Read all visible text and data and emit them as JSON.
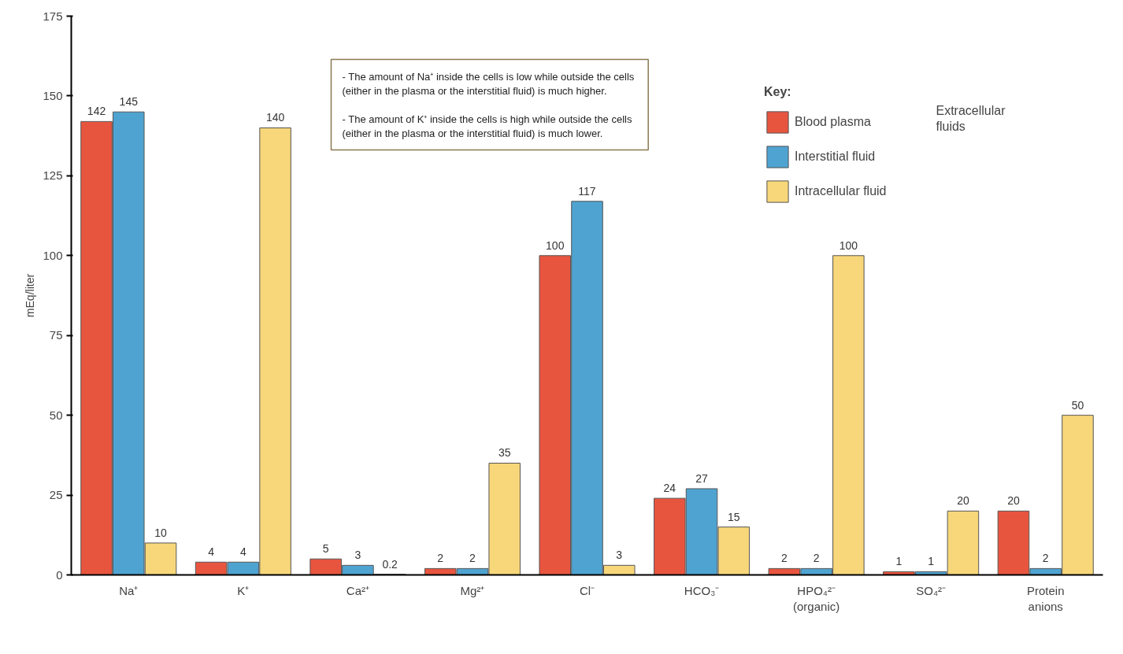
{
  "chart_data": {
    "type": "bar",
    "ylabel": "mEq/liter",
    "legend_title": "Key:",
    "categories": [
      "Na⁺",
      "K⁺",
      "Ca²⁺",
      "Mg²⁺",
      "Cl⁻",
      "HCO₃⁻",
      "HPO₄²⁻\n(organic)",
      "SO₄²⁻",
      "Protein\nanions"
    ],
    "series": [
      {
        "name": "Blood plasma",
        "color": "#e8553f",
        "values": [
          142,
          4,
          5,
          2,
          100,
          24,
          2,
          1,
          20
        ]
      },
      {
        "name": "Interstitial fluid",
        "color": "#4fa3d1",
        "values": [
          145,
          4,
          3,
          2,
          117,
          27,
          2,
          1,
          2
        ]
      },
      {
        "name": "Intracellular fluid",
        "color": "#f7d77a",
        "values": [
          10,
          140,
          0.2,
          35,
          3,
          15,
          100,
          20,
          50
        ]
      }
    ],
    "ylim": [
      0,
      175
    ],
    "yticks": [
      0,
      25,
      50,
      75,
      100,
      125,
      150,
      175
    ],
    "data_labels": true,
    "grid": false,
    "legend": "top right",
    "annotations": [
      "- The amount of Na⁺ inside the cells is low while outside the  cells\n(either in the plasma or the interstitial fluid) is much  higher.\n\n- The amount of K⁺ inside the cells is high while outside the  cells\n(either in the plasma or the interstitial fluid) is much  lower.",
      "Extracellular\nfluids"
    ]
  }
}
